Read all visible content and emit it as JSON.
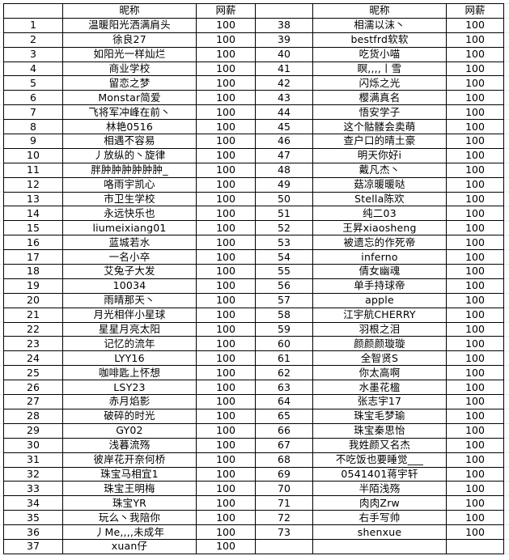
{
  "header": {
    "name": "昵称",
    "salary": "网薪"
  },
  "left_rows": [
    [
      "1",
      "温暖阳光洒满肩头",
      "100"
    ],
    [
      "2",
      "徐良27",
      "100"
    ],
    [
      "3",
      "如阳光一样灿烂",
      "100"
    ],
    [
      "4",
      "商业学校",
      "100"
    ],
    [
      "5",
      "留恋之梦",
      "100"
    ],
    [
      "6",
      "Monstar简爱",
      "100"
    ],
    [
      "7",
      "飞将军冲峰在前丶",
      "100"
    ],
    [
      "8",
      "林艳0516",
      "100"
    ],
    [
      "9",
      "相遇不容易",
      "100"
    ],
    [
      "10",
      "丿放纵的丶旋律",
      "100"
    ],
    [
      "11",
      "胖肿肿肿肿肿肿_",
      "100"
    ],
    [
      "12",
      "咯雨宇凯心",
      "100"
    ],
    [
      "13",
      "市卫生学校",
      "100"
    ],
    [
      "14",
      "永远快乐也",
      "100"
    ],
    [
      "15",
      "liumeixiang01",
      "100"
    ],
    [
      "16",
      "蓝城若水",
      "100"
    ],
    [
      "17",
      "一名小卒",
      "100"
    ],
    [
      "18",
      "艾兔子大发",
      "100"
    ],
    [
      "19",
      "10034",
      "100"
    ],
    [
      "20",
      "雨晴那天丶",
      "100"
    ],
    [
      "21",
      "月光相伴小星球",
      "100"
    ],
    [
      "22",
      "星星月亮太阳",
      "100"
    ],
    [
      "23",
      "记忆的流年",
      "100"
    ],
    [
      "24",
      "LYY16",
      "100"
    ],
    [
      "25",
      "咖啡匙上怀想",
      "100"
    ],
    [
      "26",
      "LSY23",
      "100"
    ],
    [
      "27",
      "赤月焰影",
      "100"
    ],
    [
      "28",
      "破碎的时光",
      "100"
    ],
    [
      "29",
      "GY02",
      "100"
    ],
    [
      "30",
      "浅暮流殇",
      "100"
    ],
    [
      "31",
      "彼岸花开奈何桥",
      "100"
    ],
    [
      "32",
      "珠宝马相宜1",
      "100"
    ],
    [
      "33",
      "珠宝王明梅",
      "100"
    ],
    [
      "34",
      "珠宝YR",
      "100"
    ],
    [
      "35",
      "玩么丶我陪你",
      "100"
    ],
    [
      "36",
      "丿Me,,,,未成年",
      "100"
    ],
    [
      "37",
      "xuan仔",
      "100"
    ]
  ],
  "right_rows": [
    [
      "38",
      "相濡以沫丶",
      "100"
    ],
    [
      "39",
      "bestfrd软软",
      "100"
    ],
    [
      "40",
      "吃货小喵",
      "100"
    ],
    [
      "41",
      "瞑,,,,丨雪",
      "100"
    ],
    [
      "42",
      "闪烁之光",
      "100"
    ],
    [
      "43",
      "樱满真名",
      "100"
    ],
    [
      "44",
      "悟安学子",
      "100"
    ],
    [
      "45",
      "这个骷髅会卖萌",
      "100"
    ],
    [
      "46",
      "查户口的晴土豪",
      "100"
    ],
    [
      "47",
      "明天你好i",
      "100"
    ],
    [
      "48",
      "戴凡杰丶",
      "100"
    ],
    [
      "49",
      "菇凉暖暖哒",
      "100"
    ],
    [
      "50",
      "Stella陈欢",
      "100"
    ],
    [
      "51",
      "纯二03",
      "100"
    ],
    [
      "52",
      "王昇xiaosheng",
      "100"
    ],
    [
      "53",
      "被遗忘的作死帝",
      "100"
    ],
    [
      "54",
      "inferno",
      "100"
    ],
    [
      "55",
      "倩女幽魂",
      "100"
    ],
    [
      "56",
      "单手持球帝",
      "100"
    ],
    [
      "57",
      "apple",
      "100"
    ],
    [
      "58",
      "江宇航CHERRY",
      "100"
    ],
    [
      "59",
      "羽根之泪",
      "100"
    ],
    [
      "60",
      "颜颜颜璇璇",
      "100"
    ],
    [
      "61",
      "全智贤S",
      "100"
    ],
    [
      "62",
      "你太高啊",
      "100"
    ],
    [
      "63",
      "水墨花楹",
      "100"
    ],
    [
      "64",
      "张志宇17",
      "100"
    ],
    [
      "65",
      "珠宝毛梦瑜",
      "100"
    ],
    [
      "66",
      "珠宝秦思怡",
      "100"
    ],
    [
      "67",
      "我姓颜又名杰",
      "100"
    ],
    [
      "68",
      "不吃饭也要睡觉___",
      "100"
    ],
    [
      "69",
      "0541401蒋宇轩",
      "100"
    ],
    [
      "70",
      "半陌浅殇",
      "100"
    ],
    [
      "71",
      "肉肉Zrw",
      "100"
    ],
    [
      "72",
      "右手写帅",
      "100"
    ],
    [
      "73",
      "shenxue",
      "100"
    ],
    [
      "",
      "",
      ""
    ]
  ]
}
